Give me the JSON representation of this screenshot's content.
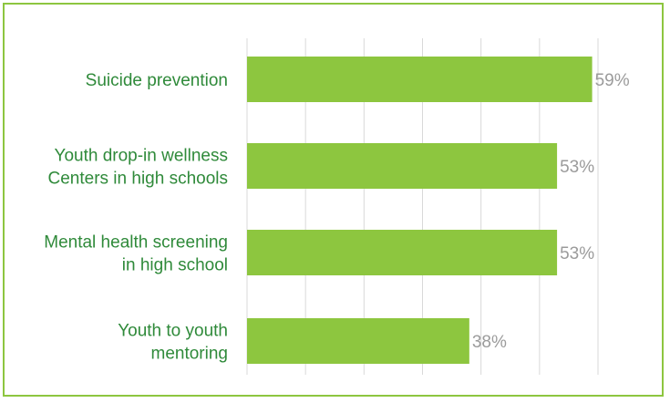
{
  "chart_data": {
    "type": "bar",
    "orientation": "horizontal",
    "categories": [
      [
        "Suicide prevention"
      ],
      [
        "Youth drop-in wellness",
        "Centers in high schools"
      ],
      [
        "Mental health screening",
        "in high school"
      ],
      [
        "Youth to youth",
        "mentoring"
      ]
    ],
    "values": [
      59,
      53,
      53,
      38
    ],
    "value_labels": [
      "59%",
      "53%",
      "53%",
      "38%"
    ],
    "xlim": [
      0,
      60
    ],
    "grid": true,
    "legend": "none"
  },
  "colors": {
    "bar": "#8dc63f",
    "frame_border": "#8dc63f",
    "category_text": "#2f8a3a",
    "value_text": "#9b9b9b",
    "grid": "#d9d9d9"
  }
}
